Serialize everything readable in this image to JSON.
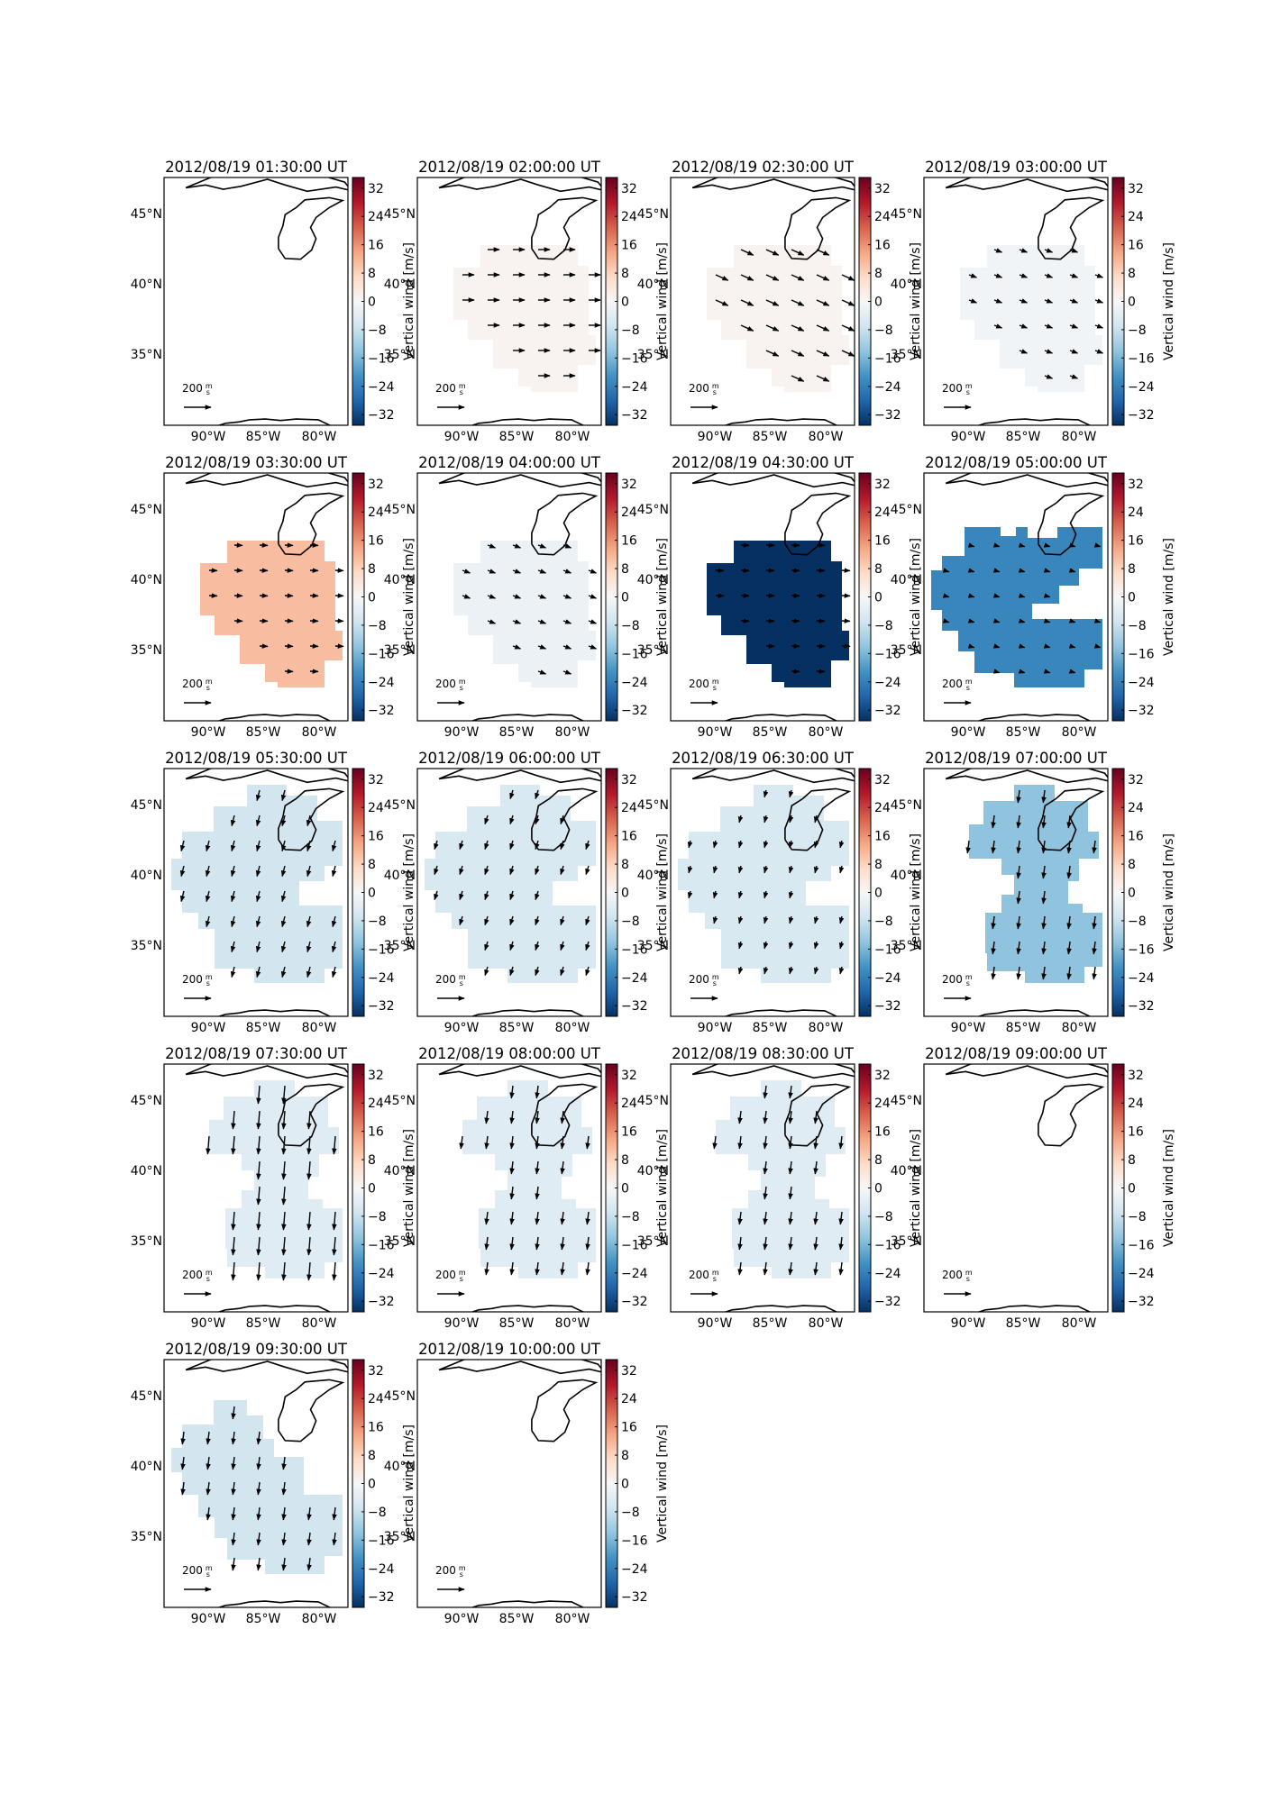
{
  "figure": {
    "colorbar_label": "Vertical wind [m/s]",
    "colorbar_ticks": [
      "32",
      "24",
      "16",
      "8",
      "0",
      "−8",
      "−16",
      "−24",
      "−32"
    ],
    "lat_labels": [
      "45°N",
      "40°N",
      "35°N"
    ],
    "lon_labels": [
      "90°W",
      "85°W",
      "80°W"
    ],
    "scale_arrow_label": "200",
    "scale_arrow_unit_num": "m",
    "scale_arrow_unit_den": "s"
  },
  "chart_data": {
    "type": "map",
    "variable": "Vertical wind [m/s]",
    "color_range": [
      -32,
      32
    ],
    "panels": [
      {
        "title": "2012/08/19 01:30:00 UT",
        "value": null,
        "shape": "none",
        "arrows": "none"
      },
      {
        "title": "2012/08/19 02:00:00 UT",
        "value": 1,
        "shape": "A",
        "arrows": "east"
      },
      {
        "title": "2012/08/19 02:30:00 UT",
        "value": 1,
        "shape": "A",
        "arrows": "southeast"
      },
      {
        "title": "2012/08/19 03:00:00 UT",
        "value": -1,
        "shape": "A",
        "arrows": "southeast-small"
      },
      {
        "title": "2012/08/19 03:30:00 UT",
        "value": 10,
        "shape": "A",
        "arrows": "east-small"
      },
      {
        "title": "2012/08/19 04:00:00 UT",
        "value": -2,
        "shape": "A",
        "arrows": "southeast-small"
      },
      {
        "title": "2012/08/19 04:30:00 UT",
        "value": -35,
        "shape": "A",
        "arrows": "east-small"
      },
      {
        "title": "2012/08/19 05:00:00 UT",
        "value": -21,
        "shape": "B",
        "arrows": "small"
      },
      {
        "title": "2012/08/19 05:30:00 UT",
        "value": -6,
        "shape": "C",
        "arrows": "mixed"
      },
      {
        "title": "2012/08/19 06:00:00 UT",
        "value": -5,
        "shape": "C",
        "arrows": "southwest"
      },
      {
        "title": "2012/08/19 06:30:00 UT",
        "value": -5,
        "shape": "C",
        "arrows": "southwest-small"
      },
      {
        "title": "2012/08/19 07:00:00 UT",
        "value": -13,
        "shape": "D",
        "arrows": "south"
      },
      {
        "title": "2012/08/19 07:30:00 UT",
        "value": -4,
        "shape": "E",
        "arrows": "south-long"
      },
      {
        "title": "2012/08/19 08:00:00 UT",
        "value": -4,
        "shape": "E",
        "arrows": "south"
      },
      {
        "title": "2012/08/19 08:30:00 UT",
        "value": -4,
        "shape": "E",
        "arrows": "south"
      },
      {
        "title": "2012/08/19 09:00:00 UT",
        "value": null,
        "shape": "none",
        "arrows": "none"
      },
      {
        "title": "2012/08/19 09:30:00 UT",
        "value": -6,
        "shape": "F",
        "arrows": "south"
      },
      {
        "title": "2012/08/19 10:00:00 UT",
        "value": null,
        "shape": "none",
        "arrows": "none"
      }
    ]
  }
}
